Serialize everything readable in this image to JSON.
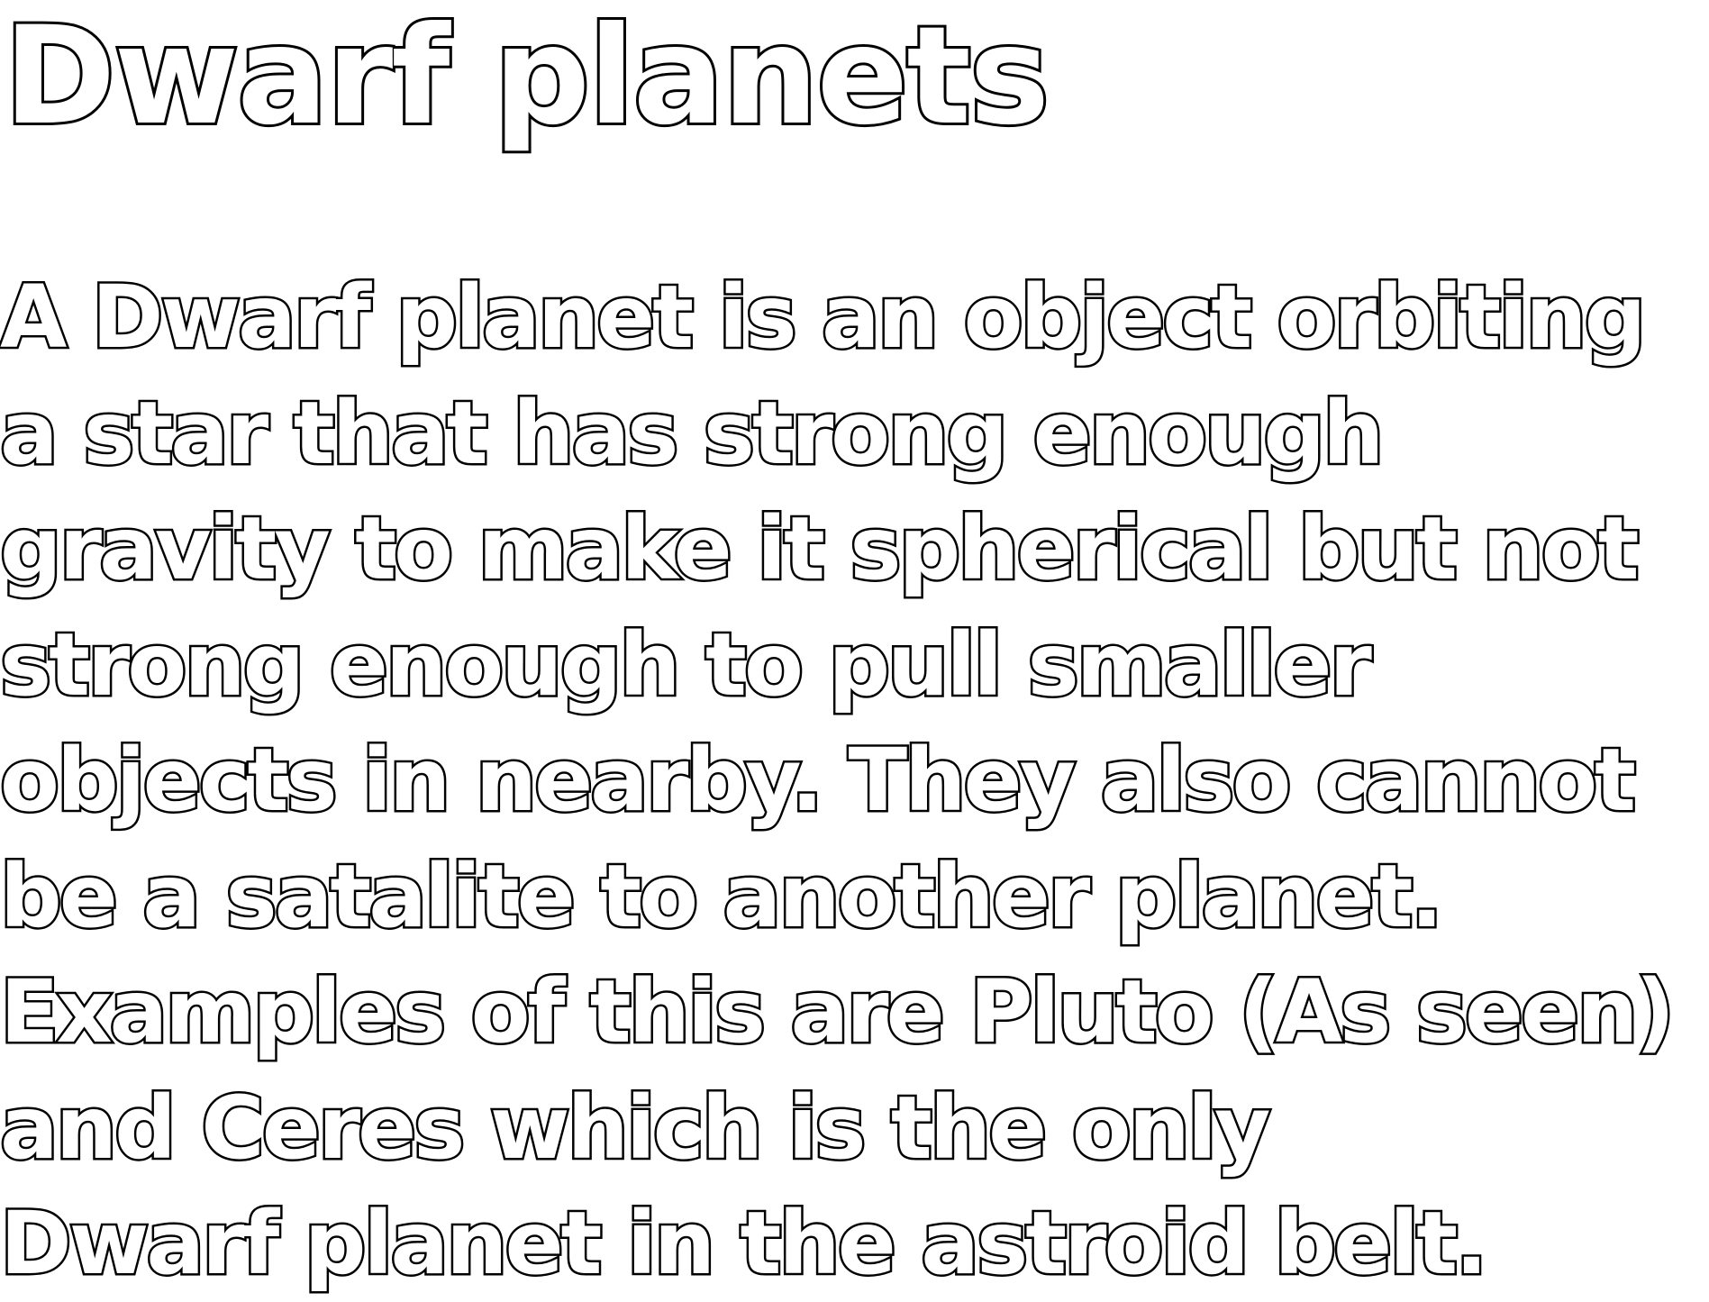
{
  "title": "Dwarf planets",
  "body": {
    "lines": [
      "A Dwarf planet is an object orbiting",
      "a star that has strong enough",
      "gravity to make it spherical but not",
      "strong enough to pull smaller",
      "objects in nearby. They also cannot",
      "be a satalite to another planet.",
      "Examples of this are Pluto (As seen)",
      "and Ceres which is the only",
      "Dwarf planet in the astroid belt."
    ]
  },
  "colors": {
    "background": "#ffffff",
    "text_fill": "#ffffff",
    "text_outline": "#000000"
  }
}
